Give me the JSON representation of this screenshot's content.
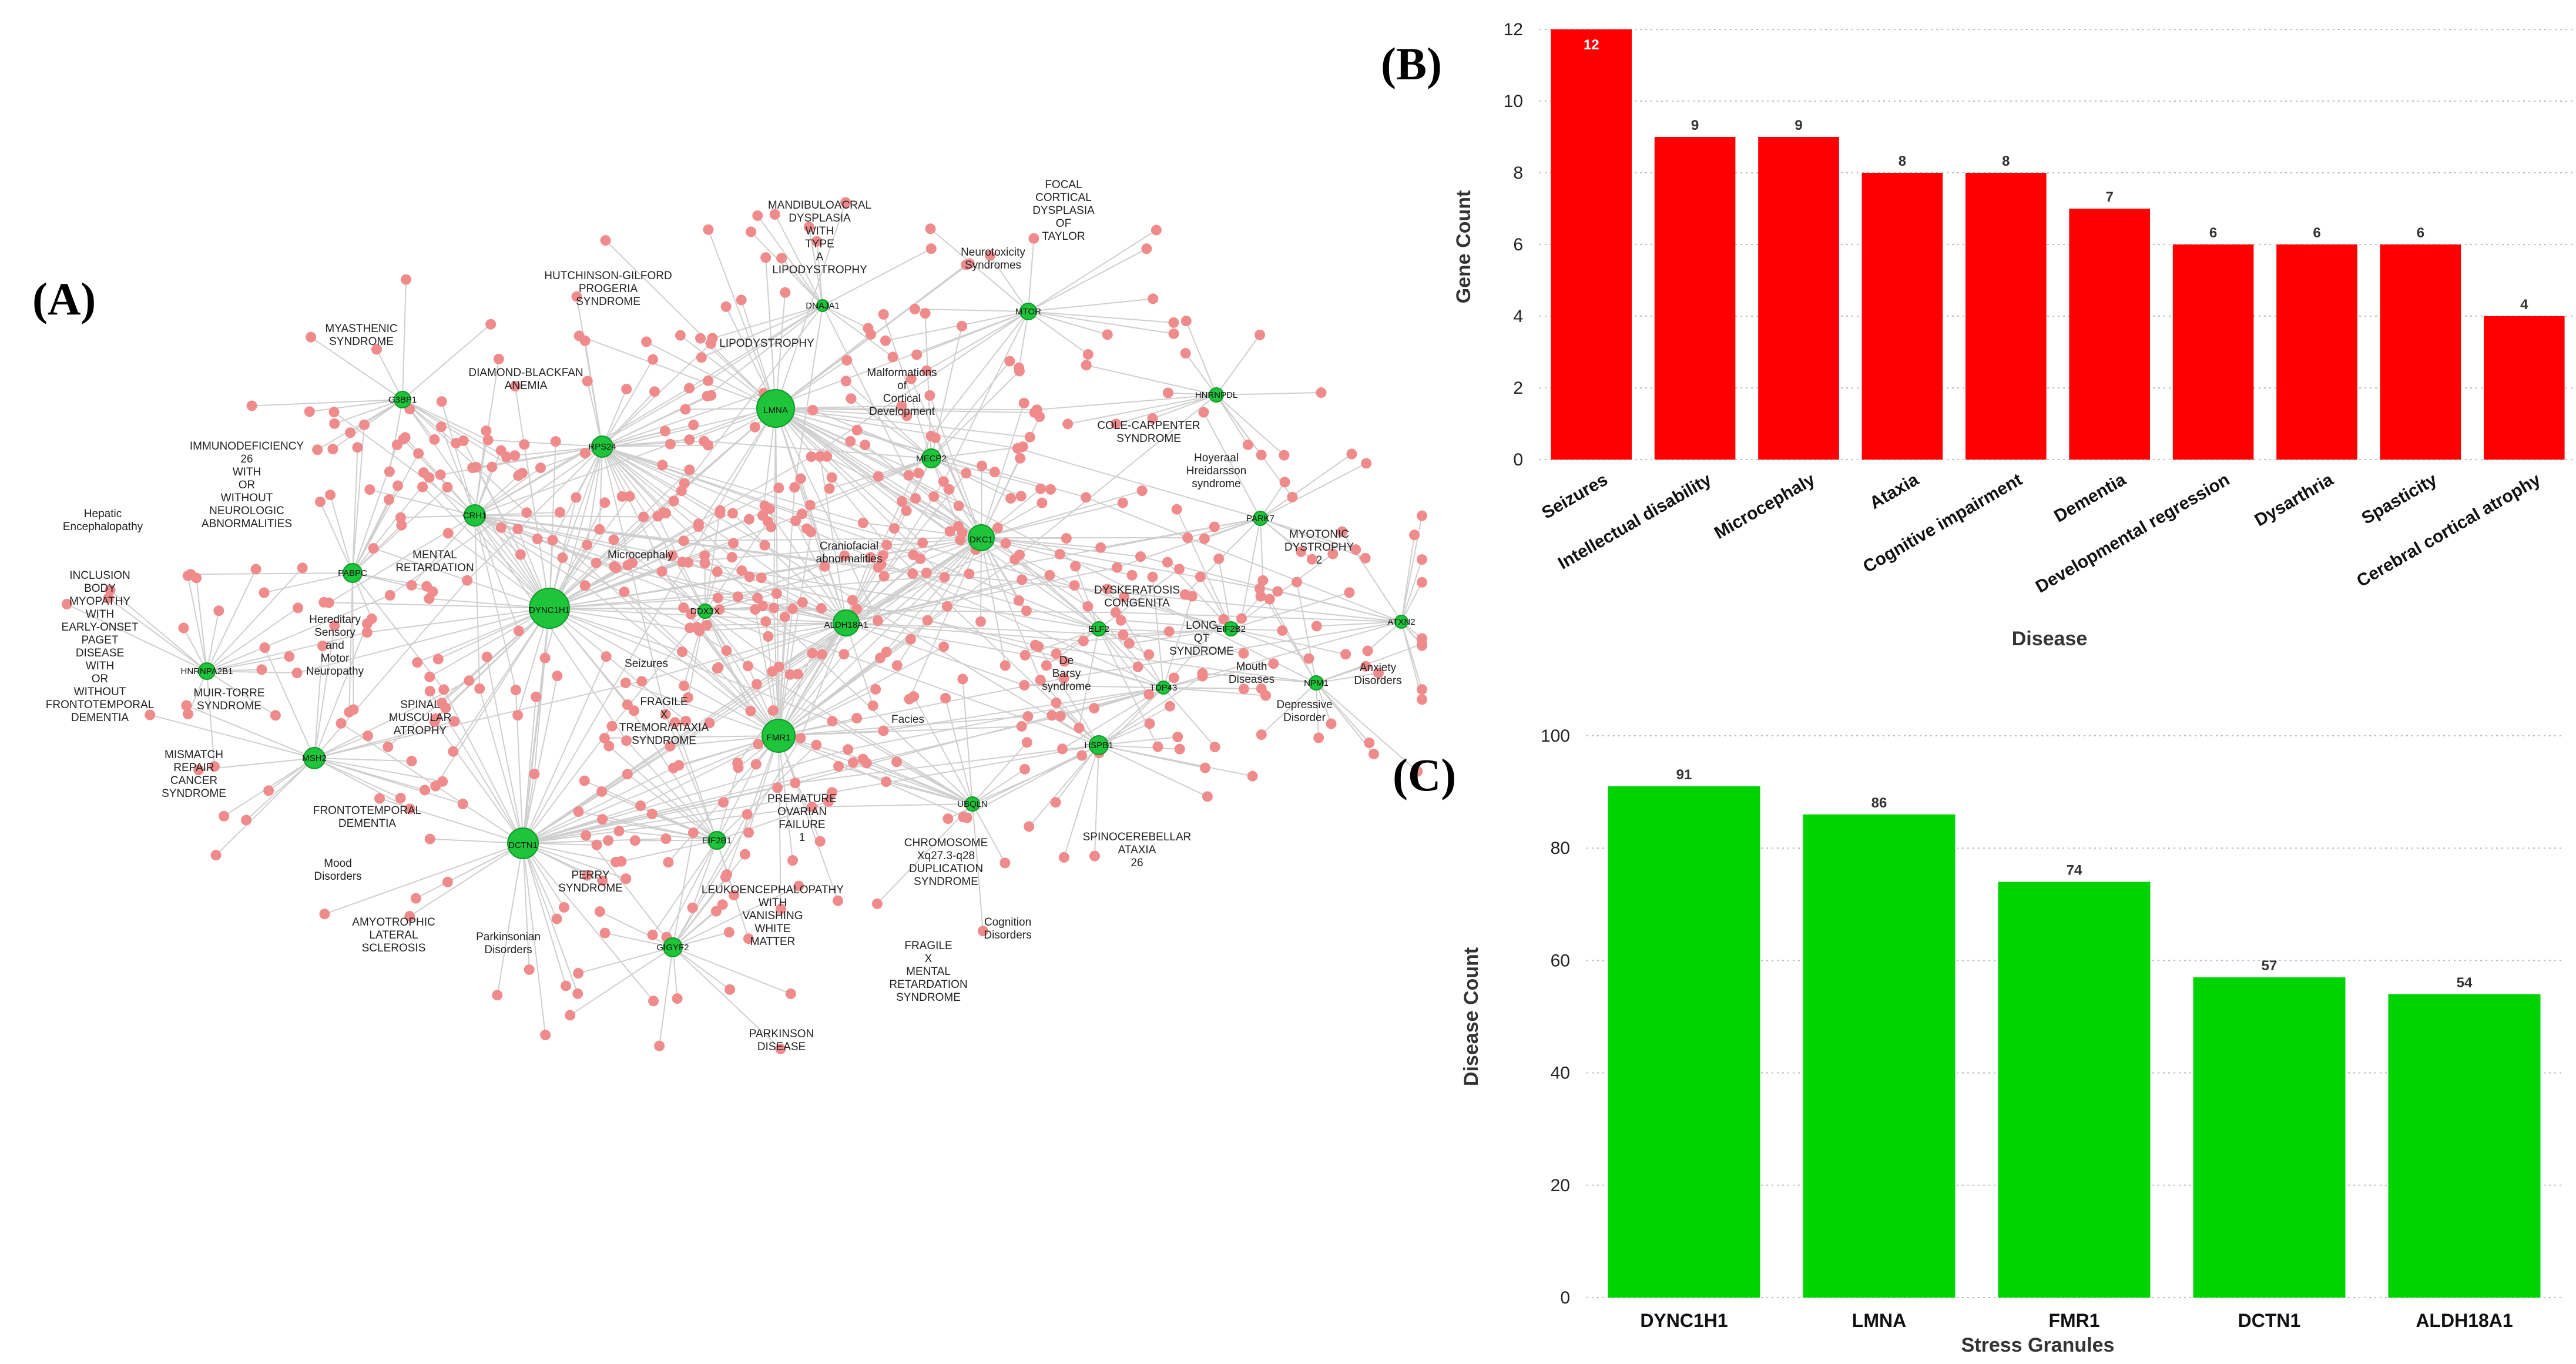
{
  "panel_labels": {
    "a": "(A)",
    "b": "(B)",
    "c": "(C)"
  },
  "colors": {
    "disease_node": "#f08b8b",
    "gene_node": "#1ec43a",
    "bar_b": "#ff0000",
    "bar_c": "#00d400",
    "edge": "#cfcfcf"
  },
  "network": {
    "gene_nodes": [
      "DYNC1H1",
      "LMNA",
      "FMR1",
      "DCTN1",
      "ALDH18A1",
      "DKC1",
      "RPS24",
      "CRH1",
      "PABPC",
      "EIF2B1",
      "G3BP1",
      "HNRNPA2B1",
      "MECP2",
      "MTOR",
      "DDX3X",
      "HNRNPDL",
      "PARK7",
      "UBQLN",
      "MSH2",
      "ELF2",
      "NPM1",
      "TDP43",
      "ATXN2",
      "EIF2B2",
      "HSPB1",
      "GIGYF2",
      "DNAJA1"
    ],
    "disease_labels": [
      "MYASTHENIC\nSYNDROME",
      "HUTCHINSON-GILFORD\nPROGERIA\nSYNDROME",
      "MANDIBULOACRAL\nDYSPLASIA\nWITH\nTYPE\nA\nLIPODYSTROPHY",
      "FOCAL\nCORTICAL\nDYSPLASIA\nOF\nTAYLOR",
      "Neurotoxicity\nSyndromes",
      "DIAMOND-BLACKFAN\nANEMIA",
      "LIPODYSTROPHY",
      "Malformations\nof\nCortical\nDevelopment",
      "COLE-CARPENTER\nSYNDROME",
      "Hoyeraal\nHreidarsson\nsyndrome",
      "IMMUNODEFICIENCY\n26\nWITH\nOR\nWITHOUT\nNEUROLOGIC\nABNORMALITIES",
      "Hepatic\nEncephalopathy",
      "MYOTONIC\nDYSTROPHY\n2",
      "MENTAL\nRETARDATION",
      "Microcephaly",
      "Craniofacial\nabnormalities",
      "INCLUSION\nBODY\nMYOPATHY\nWITH\nEARLY-ONSET\nPAGET\nDISEASE\nWITH\nOR\nWITHOUT\nFRONTOTEMPORAL\nDEMENTIA",
      "DYSKERATOSIS\nCONGENITA",
      "Hereditary\nSensory\nand\nMotor\nNeuropathy",
      "LONG\nQT\nSYNDROME",
      "De\nBarsy\nsyndrome",
      "Mouth\nDiseases",
      "Anxiety\nDisorders",
      "Seizures",
      "MUIR-TORRE\nSYNDROME",
      "SPINAL\nMUSCULAR\nATROPHY",
      "FRAGILE\nX\nTREMOR/ATAXIA\nSYNDROME",
      "Facies",
      "Depressive\nDisorder",
      "MISMATCH\nREPAIR\nCANCER\nSYNDROME",
      "FRONTOTEMPORAL\nDEMENTIA",
      "PREMATURE\nOVARIAN\nFAILURE\n1",
      "SPINOCEREBELLAR\nATAXIA\n26",
      "Mood\nDisorders",
      "CHROMOSOME\nXq27.3-q28\nDUPLICATION\nSYNDROME",
      "PERRY\nSYNDROME",
      "LEUKOENCEPHALOPATHY\nWITH\nVANISHING\nWHITE\nMATTER",
      "AMYOTROPHIC\nLATERAL\nSCLEROSIS",
      "Parkinsonian\nDisorders",
      "Cognition\nDisorders",
      "FRAGILE\nX\nMENTAL\nRETARDATION\nSYNDROME",
      "PARKINSON\nDISEASE"
    ]
  },
  "chart_data": [
    {
      "panel": "B",
      "type": "bar",
      "title": "",
      "xlabel": "Disease",
      "ylabel": "Gene Count",
      "categories": [
        "Seizures",
        "Intellectual disability",
        "Microcephaly",
        "Ataxia",
        "Cognitive impairment",
        "Dementia",
        "Developmental regression",
        "Dysarthria",
        "Spasticity",
        "Cerebral cortical atrophy"
      ],
      "values": [
        12,
        9,
        9,
        8,
        8,
        7,
        6,
        6,
        6,
        4
      ],
      "ylim": [
        0,
        12
      ],
      "yticks": [
        0,
        2,
        4,
        6,
        8,
        10,
        12
      ],
      "grid": true
    },
    {
      "panel": "C",
      "type": "bar",
      "title": "",
      "xlabel": "Stress Granules",
      "ylabel": "Disease Count",
      "categories": [
        "DYNC1H1",
        "LMNA",
        "FMR1",
        "DCTN1",
        "ALDH18A1"
      ],
      "values": [
        91,
        86,
        74,
        57,
        54
      ],
      "ylim": [
        0,
        100
      ],
      "yticks": [
        0,
        20,
        40,
        60,
        80,
        100
      ],
      "grid": true
    }
  ]
}
